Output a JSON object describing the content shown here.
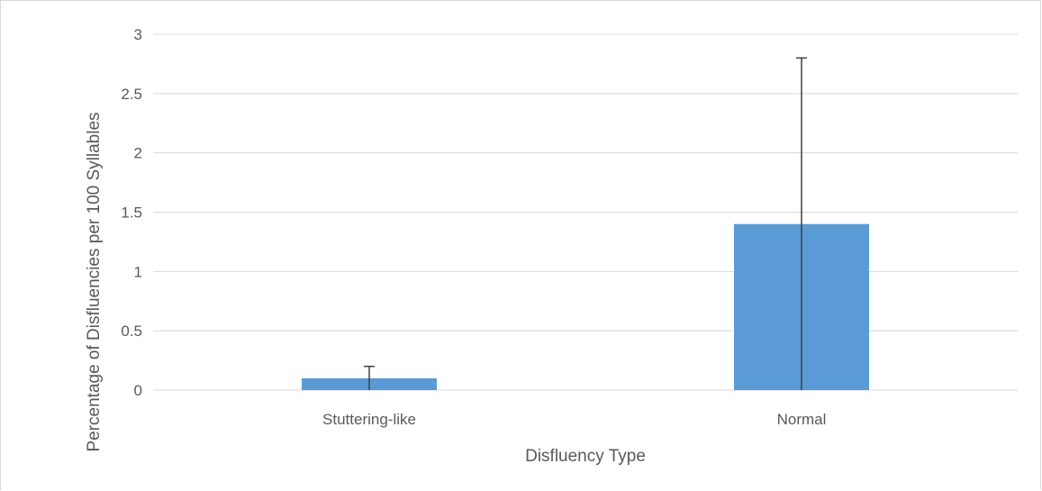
{
  "chart_data": {
    "type": "bar",
    "categories": [
      "Stuttering-like",
      "Normal"
    ],
    "series": [
      {
        "values": [
          0.1,
          1.4
        ],
        "error_plus": [
          0.1,
          1.4
        ],
        "error_minus": [
          0.1,
          1.4
        ]
      }
    ],
    "xlabel": "Disfluency Type",
    "ylabel": "Percentage of Disfluencies per 100 Syllables",
    "ylim": [
      0,
      3
    ],
    "yticks": [
      "0",
      "0.5",
      "1",
      "1.5",
      "2",
      "2.5",
      "3"
    ],
    "grid": true,
    "legend": "none",
    "colors": {
      "bar": "#5b9bd5",
      "grid": "#d9d9d9",
      "error_bar": "#404040",
      "text": "#595959"
    }
  }
}
